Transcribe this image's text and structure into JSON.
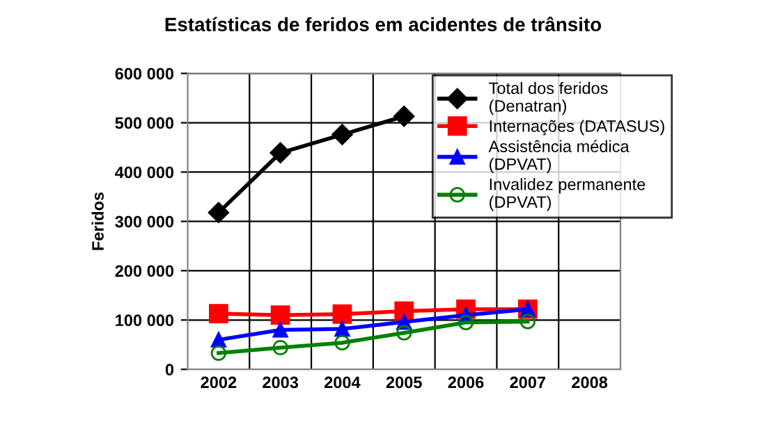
{
  "chart_data": {
    "type": "line",
    "title": "Estatísticas de feridos em acidentes de trânsito",
    "ylabel": "Feridos",
    "categories": [
      "2002",
      "2003",
      "2004",
      "2005",
      "2006",
      "2007",
      "2008"
    ],
    "series": [
      {
        "name": "Total dos feridos\n(Denatran)",
        "color": "#000000",
        "marker": "diamond",
        "values": [
          318000,
          439000,
          476000,
          513000,
          null,
          null,
          null
        ]
      },
      {
        "name": "Internações (DATASUS)",
        "color": "#ff0000",
        "marker": "square",
        "values": [
          113000,
          110000,
          112000,
          118000,
          122000,
          122000,
          null
        ]
      },
      {
        "name": "Assistência médica\n(DPVAT)",
        "color": "#0000ff",
        "marker": "triangle",
        "values": [
          60000,
          80000,
          82000,
          96000,
          110000,
          122000,
          null
        ]
      },
      {
        "name": "Invalidez permanente\n(DPVAT)",
        "color": "#008000",
        "marker": "circle",
        "values": [
          33000,
          44000,
          54000,
          74000,
          95000,
          97000,
          null
        ]
      }
    ],
    "ylim": [
      0,
      600000
    ],
    "yticks": [
      {
        "value": 0,
        "label": "0"
      },
      {
        "value": 100000,
        "label": "100 000"
      },
      {
        "value": 200000,
        "label": "200 000"
      },
      {
        "value": 300000,
        "label": "300 000"
      },
      {
        "value": 400000,
        "label": "400 000"
      },
      {
        "value": 500000,
        "label": "500 000"
      },
      {
        "value": 600000,
        "label": "600 000"
      }
    ],
    "grid": true,
    "legend": "top right",
    "line_style": "solid"
  }
}
